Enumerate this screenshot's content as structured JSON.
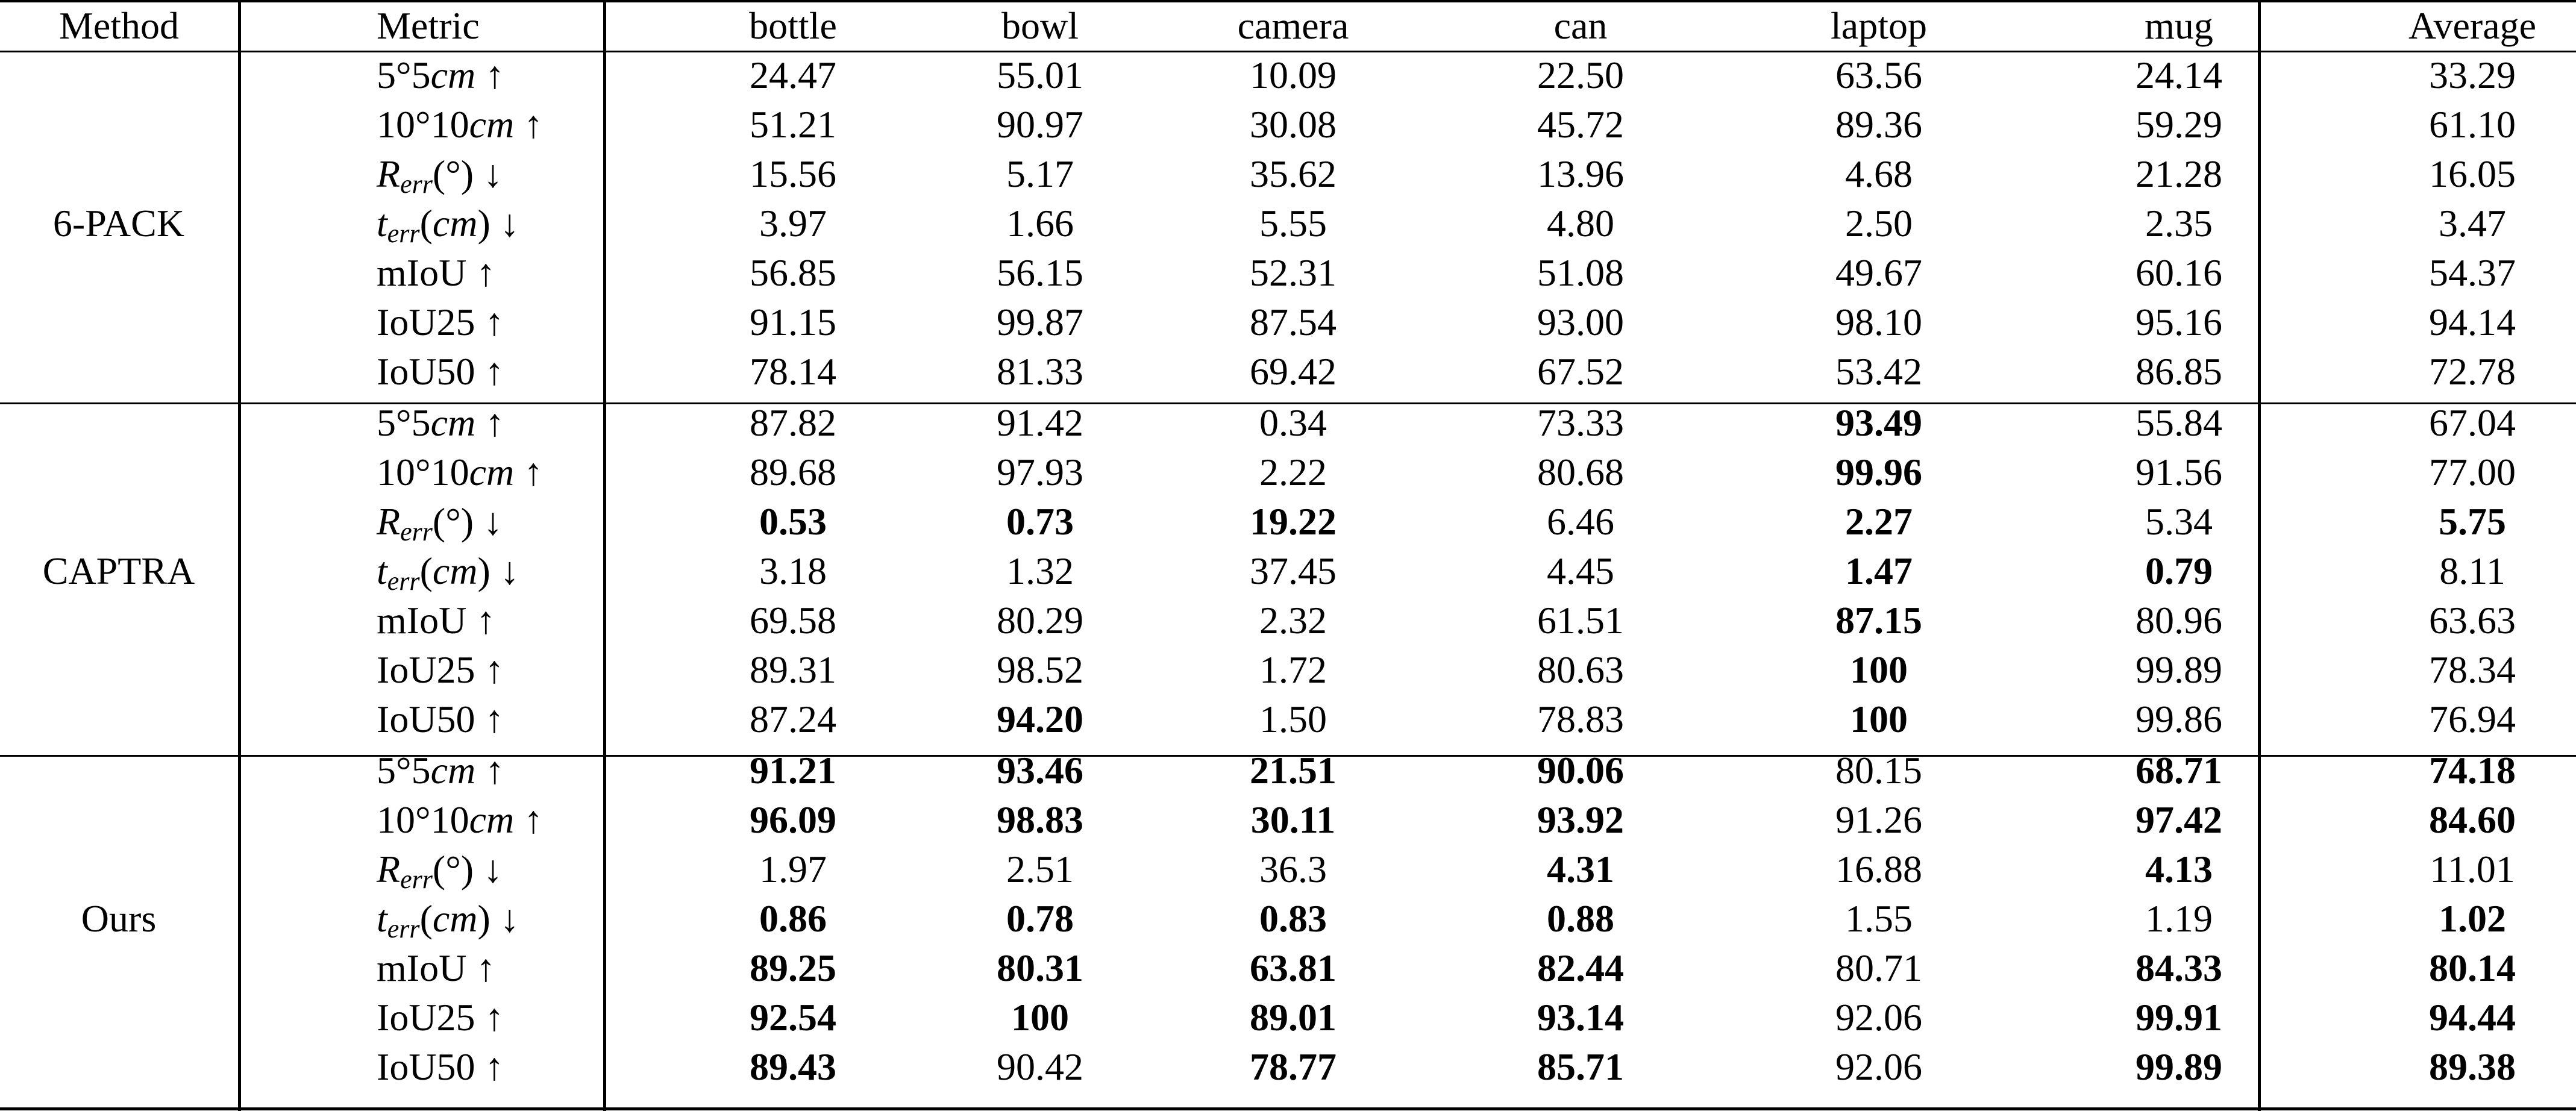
{
  "header": {
    "method": "Method",
    "metric": "Metric",
    "columns": [
      "bottle",
      "bowl",
      "camera",
      "can",
      "laptop",
      "mug",
      "Average"
    ]
  },
  "metrics": [
    {
      "id": "55",
      "parts": [
        [
          "n",
          "5°5"
        ],
        [
          "i",
          "cm"
        ],
        [
          "n",
          " ↑"
        ]
      ]
    },
    {
      "id": "1010",
      "parts": [
        [
          "n",
          "10°10"
        ],
        [
          "i",
          "cm"
        ],
        [
          "n",
          " ↑"
        ]
      ]
    },
    {
      "id": "rerr",
      "parts": [
        [
          "i",
          "R"
        ],
        [
          "s",
          "err"
        ],
        [
          "n",
          "(°) ↓"
        ]
      ]
    },
    {
      "id": "terr",
      "parts": [
        [
          "i",
          "t"
        ],
        [
          "s",
          "err"
        ],
        [
          "n",
          "("
        ],
        [
          "i",
          "cm"
        ],
        [
          "n",
          ") ↓"
        ]
      ]
    },
    {
      "id": "miou",
      "parts": [
        [
          "n",
          "mIoU ↑"
        ]
      ]
    },
    {
      "id": "iou25",
      "parts": [
        [
          "n",
          "IoU25 ↑"
        ]
      ]
    },
    {
      "id": "iou50",
      "parts": [
        [
          "n",
          "IoU50 ↑"
        ]
      ]
    }
  ],
  "groups": [
    {
      "method": "6-PACK",
      "rows": [
        {
          "values": [
            "24.47",
            "55.01",
            "10.09",
            "22.50",
            "63.56",
            "24.14",
            "33.29"
          ],
          "bold": [
            0,
            0,
            0,
            0,
            0,
            0,
            0
          ]
        },
        {
          "values": [
            "51.21",
            "90.97",
            "30.08",
            "45.72",
            "89.36",
            "59.29",
            "61.10"
          ],
          "bold": [
            0,
            0,
            0,
            0,
            0,
            0,
            0
          ]
        },
        {
          "values": [
            "15.56",
            "5.17",
            "35.62",
            "13.96",
            "4.68",
            "21.28",
            "16.05"
          ],
          "bold": [
            0,
            0,
            0,
            0,
            0,
            0,
            0
          ]
        },
        {
          "values": [
            "3.97",
            "1.66",
            "5.55",
            "4.80",
            "2.50",
            "2.35",
            "3.47"
          ],
          "bold": [
            0,
            0,
            0,
            0,
            0,
            0,
            0
          ]
        },
        {
          "values": [
            "56.85",
            "56.15",
            "52.31",
            "51.08",
            "49.67",
            "60.16",
            "54.37"
          ],
          "bold": [
            0,
            0,
            0,
            0,
            0,
            0,
            0
          ]
        },
        {
          "values": [
            "91.15",
            "99.87",
            "87.54",
            "93.00",
            "98.10",
            "95.16",
            "94.14"
          ],
          "bold": [
            0,
            0,
            0,
            0,
            0,
            0,
            0
          ]
        },
        {
          "values": [
            "78.14",
            "81.33",
            "69.42",
            "67.52",
            "53.42",
            "86.85",
            "72.78"
          ],
          "bold": [
            0,
            0,
            0,
            0,
            0,
            0,
            0
          ]
        }
      ]
    },
    {
      "method": "CAPTRA",
      "rows": [
        {
          "values": [
            "87.82",
            "91.42",
            "0.34",
            "73.33",
            "93.49",
            "55.84",
            "67.04"
          ],
          "bold": [
            0,
            0,
            0,
            0,
            1,
            0,
            0
          ]
        },
        {
          "values": [
            "89.68",
            "97.93",
            "2.22",
            "80.68",
            "99.96",
            "91.56",
            "77.00"
          ],
          "bold": [
            0,
            0,
            0,
            0,
            1,
            0,
            0
          ]
        },
        {
          "values": [
            "0.53",
            "0.73",
            "19.22",
            "6.46",
            "2.27",
            "5.34",
            "5.75"
          ],
          "bold": [
            1,
            1,
            1,
            0,
            1,
            0,
            1
          ]
        },
        {
          "values": [
            "3.18",
            "1.32",
            "37.45",
            "4.45",
            "1.47",
            "0.79",
            "8.11"
          ],
          "bold": [
            0,
            0,
            0,
            0,
            1,
            1,
            0
          ]
        },
        {
          "values": [
            "69.58",
            "80.29",
            "2.32",
            "61.51",
            "87.15",
            "80.96",
            "63.63"
          ],
          "bold": [
            0,
            0,
            0,
            0,
            1,
            0,
            0
          ]
        },
        {
          "values": [
            "89.31",
            "98.52",
            "1.72",
            "80.63",
            "100",
            "99.89",
            "78.34"
          ],
          "bold": [
            0,
            0,
            0,
            0,
            1,
            0,
            0
          ]
        },
        {
          "values": [
            "87.24",
            "94.20",
            "1.50",
            "78.83",
            "100",
            "99.86",
            "76.94"
          ],
          "bold": [
            0,
            1,
            0,
            0,
            1,
            0,
            0
          ]
        }
      ]
    },
    {
      "method": "Ours",
      "rows": [
        {
          "values": [
            "91.21",
            "93.46",
            "21.51",
            "90.06",
            "80.15",
            "68.71",
            "74.18"
          ],
          "bold": [
            1,
            1,
            1,
            1,
            0,
            1,
            1
          ]
        },
        {
          "values": [
            "96.09",
            "98.83",
            "30.11",
            "93.92",
            "91.26",
            "97.42",
            "84.60"
          ],
          "bold": [
            1,
            1,
            1,
            1,
            0,
            1,
            1
          ]
        },
        {
          "values": [
            "1.97",
            "2.51",
            "36.3",
            "4.31",
            "16.88",
            "4.13",
            "11.01"
          ],
          "bold": [
            0,
            0,
            0,
            1,
            0,
            1,
            0
          ]
        },
        {
          "values": [
            "0.86",
            "0.78",
            "0.83",
            "0.88",
            "1.55",
            "1.19",
            "1.02"
          ],
          "bold": [
            1,
            1,
            1,
            1,
            0,
            0,
            1
          ]
        },
        {
          "values": [
            "89.25",
            "80.31",
            "63.81",
            "82.44",
            "80.71",
            "84.33",
            "80.14"
          ],
          "bold": [
            1,
            1,
            1,
            1,
            0,
            1,
            1
          ]
        },
        {
          "values": [
            "92.54",
            "100",
            "89.01",
            "93.14",
            "92.06",
            "99.91",
            "94.44"
          ],
          "bold": [
            1,
            1,
            1,
            1,
            0,
            1,
            1
          ]
        },
        {
          "values": [
            "89.43",
            "90.42",
            "78.77",
            "85.71",
            "92.06",
            "99.89",
            "89.38"
          ],
          "bold": [
            1,
            0,
            1,
            1,
            0,
            1,
            1
          ]
        }
      ]
    }
  ]
}
